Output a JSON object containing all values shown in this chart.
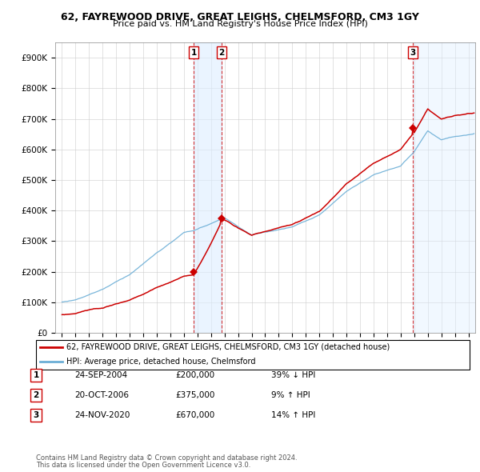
{
  "title": "62, FAYREWOOD DRIVE, GREAT LEIGHS, CHELMSFORD, CM3 1GY",
  "subtitle": "Price paid vs. HM Land Registry's House Price Index (HPI)",
  "legend_line1": "62, FAYREWOOD DRIVE, GREAT LEIGHS, CHELMSFORD, CM3 1GY (detached house)",
  "legend_line2": "HPI: Average price, detached house, Chelmsford",
  "transactions": [
    {
      "label": "1",
      "date": "24-SEP-2004",
      "price": 200000,
      "pct": "39%",
      "dir": "↓",
      "x": 2004.73
    },
    {
      "label": "2",
      "date": "20-OCT-2006",
      "price": 375000,
      "pct": "9%",
      "dir": "↑",
      "x": 2006.79
    },
    {
      "label": "3",
      "date": "24-NOV-2020",
      "price": 670000,
      "pct": "14%",
      "dir": "↑",
      "x": 2020.9
    }
  ],
  "footnote1": "Contains HM Land Registry data © Crown copyright and database right 2024.",
  "footnote2": "This data is licensed under the Open Government Licence v3.0.",
  "hpi_color": "#6baed6",
  "hpi_fill_color": "#d0e8f7",
  "price_color": "#cc0000",
  "vline_color": "#cc0000",
  "shade_color": "#ddeeff",
  "background_color": "#ffffff",
  "ylim": [
    0,
    950000
  ],
  "yticks": [
    0,
    100000,
    200000,
    300000,
    400000,
    500000,
    600000,
    700000,
    800000,
    900000
  ],
  "xlim": [
    1994.5,
    2025.5
  ]
}
